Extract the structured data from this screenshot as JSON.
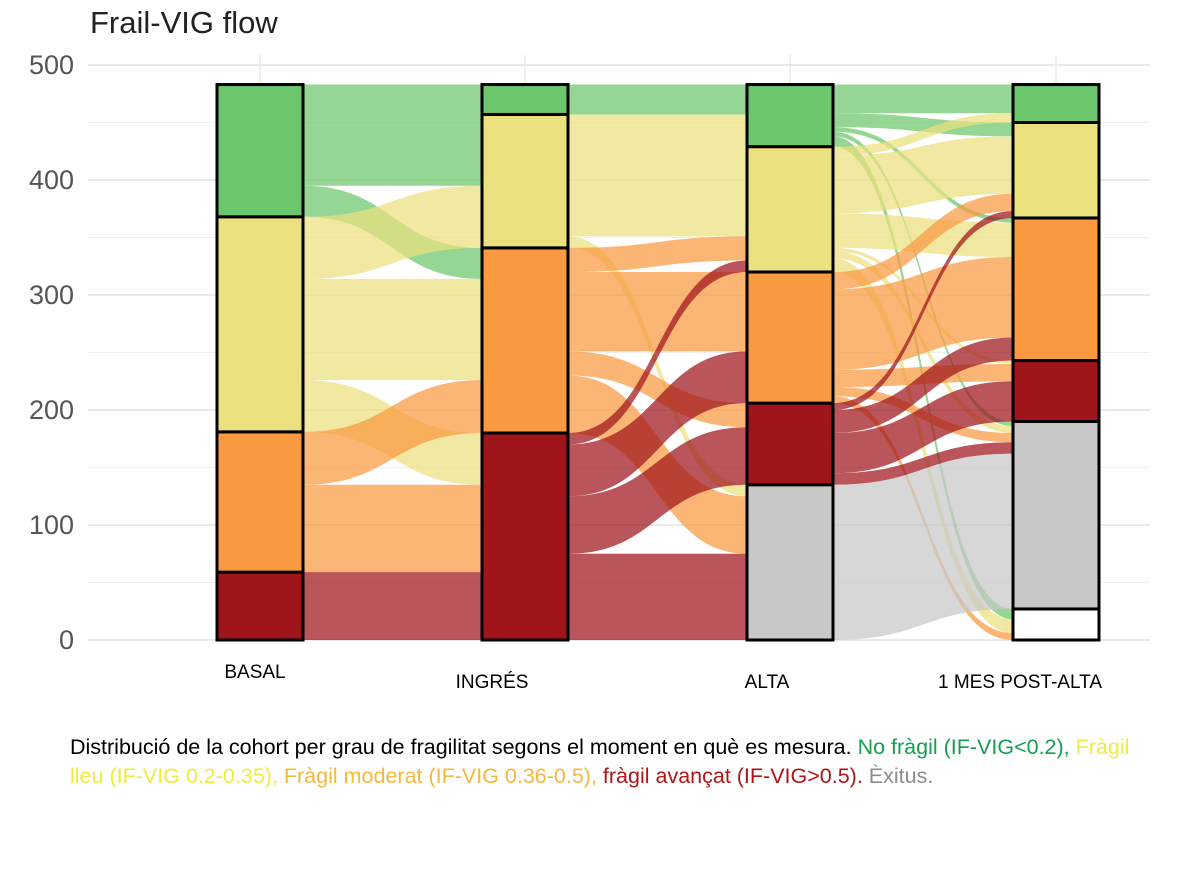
{
  "chart_data": {
    "type": "alluvial",
    "title": "Frail-VIG flow",
    "xlabel": "",
    "ylabel": "",
    "ylim": [
      0,
      500
    ],
    "yticks": [
      0,
      100,
      200,
      300,
      400,
      500
    ],
    "grid": true,
    "categories": [
      "BASAL",
      "INGRÉS",
      "ALTA",
      "1 MES POST-ALTA"
    ],
    "strata_colors": {
      "no_fragil": "#6cc66c",
      "fragil_lleu": "#ebe17e",
      "fragil_moderat": "#f99940",
      "fragil_avancat": "#a0151c",
      "exitus": "#c8c8c8",
      "blank": "#ffffff"
    },
    "strata": [
      {
        "time": "BASAL",
        "segments": [
          {
            "state": "fragil_avancat",
            "value": 59
          },
          {
            "state": "fragil_moderat",
            "value": 122
          },
          {
            "state": "fragil_lleu",
            "value": 187
          },
          {
            "state": "no_fragil",
            "value": 115
          }
        ]
      },
      {
        "time": "INGRÉS",
        "segments": [
          {
            "state": "fragil_avancat",
            "value": 180
          },
          {
            "state": "fragil_moderat",
            "value": 161
          },
          {
            "state": "fragil_lleu",
            "value": 116
          },
          {
            "state": "no_fragil",
            "value": 26
          }
        ]
      },
      {
        "time": "ALTA",
        "segments": [
          {
            "state": "exitus",
            "value": 135
          },
          {
            "state": "fragil_avancat",
            "value": 71
          },
          {
            "state": "fragil_moderat",
            "value": 114
          },
          {
            "state": "fragil_lleu",
            "value": 109
          },
          {
            "state": "no_fragil",
            "value": 54
          }
        ]
      },
      {
        "time": "1 MES POST-ALTA",
        "segments": [
          {
            "state": "blank",
            "value": 27
          },
          {
            "state": "exitus",
            "value": 163
          },
          {
            "state": "fragil_avancat",
            "value": 53
          },
          {
            "state": "fragil_moderat",
            "value": 124
          },
          {
            "state": "fragil_lleu",
            "value": 83
          },
          {
            "state": "no_fragil",
            "value": 33
          }
        ]
      }
    ],
    "flows": [
      {
        "from_time": 0,
        "to_time": 1,
        "from": "fragil_avancat",
        "to": "fragil_avancat",
        "value": 59
      },
      {
        "from_time": 0,
        "to_time": 1,
        "from": "fragil_moderat",
        "to": "fragil_avancat",
        "value": 76
      },
      {
        "from_time": 0,
        "to_time": 1,
        "from": "fragil_moderat",
        "to": "fragil_moderat",
        "value": 46
      },
      {
        "from_time": 0,
        "to_time": 1,
        "from": "fragil_lleu",
        "to": "fragil_avancat",
        "value": 45
      },
      {
        "from_time": 0,
        "to_time": 1,
        "from": "fragil_lleu",
        "to": "fragil_moderat",
        "value": 88
      },
      {
        "from_time": 0,
        "to_time": 1,
        "from": "fragil_lleu",
        "to": "fragil_lleu",
        "value": 54
      },
      {
        "from_time": 0,
        "to_time": 1,
        "from": "no_fragil",
        "to": "fragil_moderat",
        "value": 27
      },
      {
        "from_time": 0,
        "to_time": 1,
        "from": "no_fragil",
        "to": "fragil_lleu",
        "value": 62
      },
      {
        "from_time": 0,
        "to_time": 1,
        "from": "no_fragil",
        "to": "no_fragil",
        "value": 26
      },
      {
        "from_time": 1,
        "to_time": 2,
        "from": "fragil_avancat",
        "to": "exitus",
        "value": 75
      },
      {
        "from_time": 1,
        "to_time": 2,
        "from": "fragil_avancat",
        "to": "fragil_avancat",
        "value": 50
      },
      {
        "from_time": 1,
        "to_time": 2,
        "from": "fragil_avancat",
        "to": "fragil_moderat",
        "value": 45
      },
      {
        "from_time": 1,
        "to_time": 2,
        "from": "fragil_avancat",
        "to": "fragil_lleu",
        "value": 10
      },
      {
        "from_time": 1,
        "to_time": 2,
        "from": "fragil_moderat",
        "to": "exitus",
        "value": 50
      },
      {
        "from_time": 1,
        "to_time": 2,
        "from": "fragil_moderat",
        "to": "fragil_avancat",
        "value": 21
      },
      {
        "from_time": 1,
        "to_time": 2,
        "from": "fragil_moderat",
        "to": "fragil_moderat",
        "value": 69
      },
      {
        "from_time": 1,
        "to_time": 2,
        "from": "fragil_moderat",
        "to": "fragil_lleu",
        "value": 21
      },
      {
        "from_time": 1,
        "to_time": 2,
        "from": "fragil_lleu",
        "to": "exitus",
        "value": 10
      },
      {
        "from_time": 1,
        "to_time": 2,
        "from": "fragil_lleu",
        "to": "fragil_lleu",
        "value": 78
      },
      {
        "from_time": 1,
        "to_time": 2,
        "from": "fragil_lleu",
        "to": "no_fragil",
        "value": 28
      },
      {
        "from_time": 1,
        "to_time": 2,
        "from": "no_fragil",
        "to": "no_fragil",
        "value": 26
      },
      {
        "from_time": 2,
        "to_time": 3,
        "from": "exitus",
        "to": "exitus",
        "value": 135
      },
      {
        "from_time": 2,
        "to_time": 3,
        "from": "fragil_avancat",
        "to": "exitus",
        "value": 10
      },
      {
        "from_time": 2,
        "to_time": 3,
        "from": "fragil_avancat",
        "to": "fragil_avancat",
        "value": 35
      },
      {
        "from_time": 2,
        "to_time": 3,
        "from": "fragil_avancat",
        "to": "fragil_moderat",
        "value": 20
      },
      {
        "from_time": 2,
        "to_time": 3,
        "from": "fragil_avancat",
        "to": "fragil_lleu",
        "value": 6
      },
      {
        "from_time": 2,
        "to_time": 3,
        "from": "fragil_moderat",
        "to": "exitus",
        "value": 8
      },
      {
        "from_time": 2,
        "to_time": 3,
        "from": "fragil_moderat",
        "to": "blank",
        "value": 6
      },
      {
        "from_time": 2,
        "to_time": 3,
        "from": "fragil_moderat",
        "to": "fragil_avancat",
        "value": 15
      },
      {
        "from_time": 2,
        "to_time": 3,
        "from": "fragil_moderat",
        "to": "fragil_moderat",
        "value": 70
      },
      {
        "from_time": 2,
        "to_time": 3,
        "from": "fragil_moderat",
        "to": "fragil_lleu",
        "value": 15
      },
      {
        "from_time": 2,
        "to_time": 3,
        "from": "fragil_lleu",
        "to": "exitus",
        "value": 6
      },
      {
        "from_time": 2,
        "to_time": 3,
        "from": "fragil_lleu",
        "to": "blank",
        "value": 12
      },
      {
        "from_time": 2,
        "to_time": 3,
        "from": "fragil_lleu",
        "to": "fragil_avancat",
        "value": 3
      },
      {
        "from_time": 2,
        "to_time": 3,
        "from": "fragil_lleu",
        "to": "fragil_moderat",
        "value": 30
      },
      {
        "from_time": 2,
        "to_time": 3,
        "from": "fragil_lleu",
        "to": "fragil_lleu",
        "value": 50
      },
      {
        "from_time": 2,
        "to_time": 3,
        "from": "fragil_lleu",
        "to": "no_fragil",
        "value": 8
      },
      {
        "from_time": 2,
        "to_time": 3,
        "from": "no_fragil",
        "to": "exitus",
        "value": 4
      },
      {
        "from_time": 2,
        "to_time": 3,
        "from": "no_fragil",
        "to": "blank",
        "value": 9
      },
      {
        "from_time": 2,
        "to_time": 3,
        "from": "no_fragil",
        "to": "fragil_moderat",
        "value": 4
      },
      {
        "from_time": 2,
        "to_time": 3,
        "from": "no_fragil",
        "to": "fragil_lleu",
        "value": 12
      },
      {
        "from_time": 2,
        "to_time": 3,
        "from": "no_fragil",
        "to": "no_fragil",
        "value": 25
      }
    ]
  },
  "caption": {
    "intro": "Distribució de la cohort per grau de fragilitat segons el moment en què es mesura.",
    "no_fragil": "No fràgil (IF-VIG<0.2),",
    "fragil_lleu": "Fràgil lleu (IF-VIG 0.2-0.35),",
    "fragil_moderat": "Fràgil moderat (IF-VIG 0.36-0.5),",
    "fragil_avancat": "fràgil avançat (IF-VIG>0.5).",
    "exitus": "Èxitus.",
    "colors": {
      "intro": "#000000",
      "no_fragil": "#10a050",
      "fragil_lleu": "#f0ec3c",
      "fragil_moderat": "#f5b83c",
      "fragil_avancat": "#b01515",
      "exitus": "#8c8c8c"
    }
  }
}
